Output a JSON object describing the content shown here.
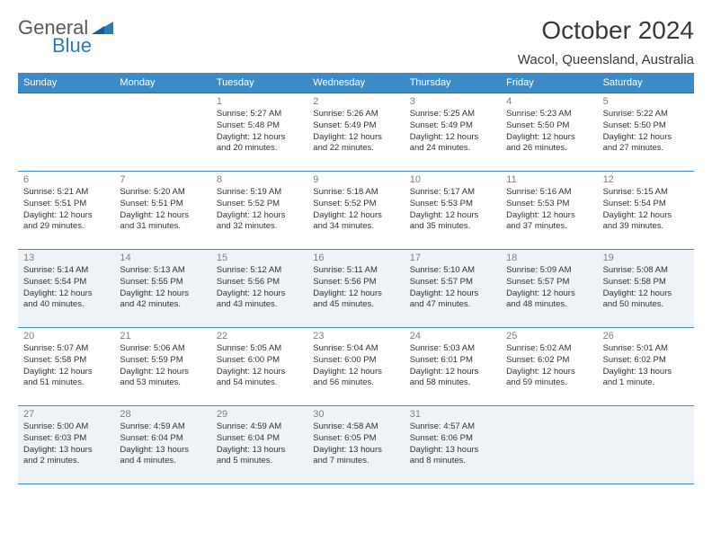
{
  "logo": {
    "text1": "General",
    "text2": "Blue"
  },
  "title": "October 2024",
  "subtitle": "Wacol, Queensland, Australia",
  "weekdays": [
    "Sunday",
    "Monday",
    "Tuesday",
    "Wednesday",
    "Thursday",
    "Friday",
    "Saturday"
  ],
  "colors": {
    "header_bar": "#3b8bc9",
    "shaded_row": "#eef3f7",
    "divider": "#3b8bc9",
    "logo_gray": "#5a5a5a",
    "logo_blue": "#2a7bbf"
  },
  "weeks": [
    {
      "shaded": false,
      "days": [
        null,
        null,
        {
          "n": "1",
          "sr": "Sunrise: 5:27 AM",
          "ss": "Sunset: 5:48 PM",
          "d1": "Daylight: 12 hours",
          "d2": "and 20 minutes."
        },
        {
          "n": "2",
          "sr": "Sunrise: 5:26 AM",
          "ss": "Sunset: 5:49 PM",
          "d1": "Daylight: 12 hours",
          "d2": "and 22 minutes."
        },
        {
          "n": "3",
          "sr": "Sunrise: 5:25 AM",
          "ss": "Sunset: 5:49 PM",
          "d1": "Daylight: 12 hours",
          "d2": "and 24 minutes."
        },
        {
          "n": "4",
          "sr": "Sunrise: 5:23 AM",
          "ss": "Sunset: 5:50 PM",
          "d1": "Daylight: 12 hours",
          "d2": "and 26 minutes."
        },
        {
          "n": "5",
          "sr": "Sunrise: 5:22 AM",
          "ss": "Sunset: 5:50 PM",
          "d1": "Daylight: 12 hours",
          "d2": "and 27 minutes."
        }
      ]
    },
    {
      "shaded": false,
      "days": [
        {
          "n": "6",
          "sr": "Sunrise: 5:21 AM",
          "ss": "Sunset: 5:51 PM",
          "d1": "Daylight: 12 hours",
          "d2": "and 29 minutes."
        },
        {
          "n": "7",
          "sr": "Sunrise: 5:20 AM",
          "ss": "Sunset: 5:51 PM",
          "d1": "Daylight: 12 hours",
          "d2": "and 31 minutes."
        },
        {
          "n": "8",
          "sr": "Sunrise: 5:19 AM",
          "ss": "Sunset: 5:52 PM",
          "d1": "Daylight: 12 hours",
          "d2": "and 32 minutes."
        },
        {
          "n": "9",
          "sr": "Sunrise: 5:18 AM",
          "ss": "Sunset: 5:52 PM",
          "d1": "Daylight: 12 hours",
          "d2": "and 34 minutes."
        },
        {
          "n": "10",
          "sr": "Sunrise: 5:17 AM",
          "ss": "Sunset: 5:53 PM",
          "d1": "Daylight: 12 hours",
          "d2": "and 35 minutes."
        },
        {
          "n": "11",
          "sr": "Sunrise: 5:16 AM",
          "ss": "Sunset: 5:53 PM",
          "d1": "Daylight: 12 hours",
          "d2": "and 37 minutes."
        },
        {
          "n": "12",
          "sr": "Sunrise: 5:15 AM",
          "ss": "Sunset: 5:54 PM",
          "d1": "Daylight: 12 hours",
          "d2": "and 39 minutes."
        }
      ]
    },
    {
      "shaded": true,
      "days": [
        {
          "n": "13",
          "sr": "Sunrise: 5:14 AM",
          "ss": "Sunset: 5:54 PM",
          "d1": "Daylight: 12 hours",
          "d2": "and 40 minutes."
        },
        {
          "n": "14",
          "sr": "Sunrise: 5:13 AM",
          "ss": "Sunset: 5:55 PM",
          "d1": "Daylight: 12 hours",
          "d2": "and 42 minutes."
        },
        {
          "n": "15",
          "sr": "Sunrise: 5:12 AM",
          "ss": "Sunset: 5:56 PM",
          "d1": "Daylight: 12 hours",
          "d2": "and 43 minutes."
        },
        {
          "n": "16",
          "sr": "Sunrise: 5:11 AM",
          "ss": "Sunset: 5:56 PM",
          "d1": "Daylight: 12 hours",
          "d2": "and 45 minutes."
        },
        {
          "n": "17",
          "sr": "Sunrise: 5:10 AM",
          "ss": "Sunset: 5:57 PM",
          "d1": "Daylight: 12 hours",
          "d2": "and 47 minutes."
        },
        {
          "n": "18",
          "sr": "Sunrise: 5:09 AM",
          "ss": "Sunset: 5:57 PM",
          "d1": "Daylight: 12 hours",
          "d2": "and 48 minutes."
        },
        {
          "n": "19",
          "sr": "Sunrise: 5:08 AM",
          "ss": "Sunset: 5:58 PM",
          "d1": "Daylight: 12 hours",
          "d2": "and 50 minutes."
        }
      ]
    },
    {
      "shaded": false,
      "days": [
        {
          "n": "20",
          "sr": "Sunrise: 5:07 AM",
          "ss": "Sunset: 5:58 PM",
          "d1": "Daylight: 12 hours",
          "d2": "and 51 minutes."
        },
        {
          "n": "21",
          "sr": "Sunrise: 5:06 AM",
          "ss": "Sunset: 5:59 PM",
          "d1": "Daylight: 12 hours",
          "d2": "and 53 minutes."
        },
        {
          "n": "22",
          "sr": "Sunrise: 5:05 AM",
          "ss": "Sunset: 6:00 PM",
          "d1": "Daylight: 12 hours",
          "d2": "and 54 minutes."
        },
        {
          "n": "23",
          "sr": "Sunrise: 5:04 AM",
          "ss": "Sunset: 6:00 PM",
          "d1": "Daylight: 12 hours",
          "d2": "and 56 minutes."
        },
        {
          "n": "24",
          "sr": "Sunrise: 5:03 AM",
          "ss": "Sunset: 6:01 PM",
          "d1": "Daylight: 12 hours",
          "d2": "and 58 minutes."
        },
        {
          "n": "25",
          "sr": "Sunrise: 5:02 AM",
          "ss": "Sunset: 6:02 PM",
          "d1": "Daylight: 12 hours",
          "d2": "and 59 minutes."
        },
        {
          "n": "26",
          "sr": "Sunrise: 5:01 AM",
          "ss": "Sunset: 6:02 PM",
          "d1": "Daylight: 13 hours",
          "d2": "and 1 minute."
        }
      ]
    },
    {
      "shaded": true,
      "days": [
        {
          "n": "27",
          "sr": "Sunrise: 5:00 AM",
          "ss": "Sunset: 6:03 PM",
          "d1": "Daylight: 13 hours",
          "d2": "and 2 minutes."
        },
        {
          "n": "28",
          "sr": "Sunrise: 4:59 AM",
          "ss": "Sunset: 6:04 PM",
          "d1": "Daylight: 13 hours",
          "d2": "and 4 minutes."
        },
        {
          "n": "29",
          "sr": "Sunrise: 4:59 AM",
          "ss": "Sunset: 6:04 PM",
          "d1": "Daylight: 13 hours",
          "d2": "and 5 minutes."
        },
        {
          "n": "30",
          "sr": "Sunrise: 4:58 AM",
          "ss": "Sunset: 6:05 PM",
          "d1": "Daylight: 13 hours",
          "d2": "and 7 minutes."
        },
        {
          "n": "31",
          "sr": "Sunrise: 4:57 AM",
          "ss": "Sunset: 6:06 PM",
          "d1": "Daylight: 13 hours",
          "d2": "and 8 minutes."
        },
        null,
        null
      ]
    }
  ]
}
